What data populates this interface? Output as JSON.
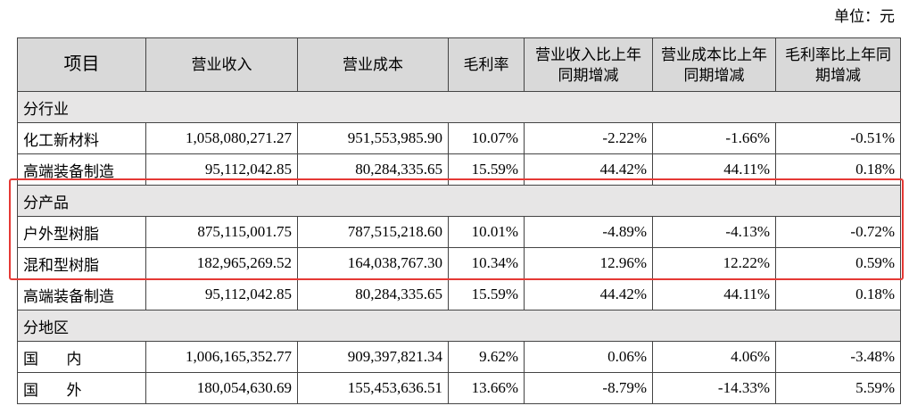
{
  "unit": "单位：元",
  "table": {
    "header": [
      "项目",
      "营业收入",
      "营业成本",
      "毛利率",
      "营业收入比上年同期增减",
      "营业成本比上年同期增减",
      "毛利率比上年同期增减"
    ],
    "rows": [
      [
        "分行业"
      ],
      [
        "化工新材料",
        "1,058,080,271.27",
        "951,553,985.90",
        "10.07%",
        "-2.22%",
        "-1.66%",
        "-0.51%"
      ],
      [
        "高端装备制造",
        "95,112,042.85",
        "80,284,335.65",
        "15.59%",
        "44.42%",
        "44.11%",
        "0.18%"
      ],
      [
        "分产品"
      ],
      [
        "户外型树脂",
        "875,115,001.75",
        "787,515,218.60",
        "10.01%",
        "-4.89%",
        "-4.13%",
        "-0.72%"
      ],
      [
        "混和型树脂",
        "182,965,269.52",
        "164,038,767.30",
        "10.34%",
        "12.96%",
        "12.22%",
        "0.59%"
      ],
      [
        "高端装备制造",
        "95,112,042.85",
        "80,284,335.65",
        "15.59%",
        "44.42%",
        "44.11%",
        "0.18%"
      ],
      [
        "分地区"
      ],
      [
        "国 内",
        "1,006,165,352.77",
        "909,397,821.34",
        "9.62%",
        "0.06%",
        "4.06%",
        "-3.48%"
      ],
      [
        "国 外",
        "180,054,630.69",
        "155,453,636.51",
        "13.66%",
        "-8.79%",
        "-14.33%",
        "5.59%"
      ]
    ]
  }
}
